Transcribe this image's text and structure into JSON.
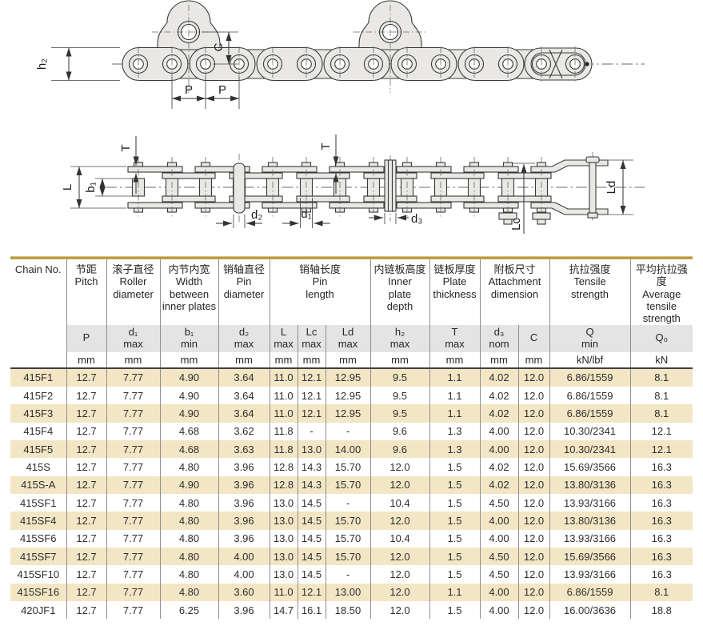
{
  "colors": {
    "accent_gold": "#bd9a35",
    "row_beige": "#f3e6c5",
    "symbol_gray": "#e4e4e4",
    "grid": "#8f8f8f",
    "drawing_fill": "#e9e8e5",
    "drawing_stroke": "#3a3a3a"
  },
  "drawings": {
    "side_view": {
      "labels": {
        "h2": "h₂",
        "c": "C",
        "p1": "P",
        "p2": "P"
      }
    },
    "plan_view": {
      "labels": {
        "t1": "T",
        "t2": "T",
        "l": "L",
        "b1": "b₁",
        "d2": "d₂",
        "d1": "d₁",
        "d3": "d₃",
        "lc": "Lc",
        "ld": "Ld"
      }
    }
  },
  "table": {
    "header": {
      "chain_no": "Chain No."
    },
    "columns": [
      {
        "zh": "节距",
        "en": "Pitch",
        "sym": "P",
        "unit": "mm"
      },
      {
        "zh": "滚子直径",
        "en": "Roller\ndiameter",
        "sym": "d₁\nmax",
        "unit": "mm"
      },
      {
        "zh": "内节内宽",
        "en": "Width\nbetween\ninner plates",
        "sym": "b₁\nmin",
        "unit": "mm"
      },
      {
        "zh": "销轴直径",
        "en": "Pin\ndiameter",
        "sym": "d₂\nmax",
        "unit": "mm"
      },
      {
        "zh": "销轴长度",
        "en": "Pin\nlength",
        "subs": [
          {
            "sym": "L\nmax",
            "unit": "mm"
          },
          {
            "sym": "Lc\nmax",
            "unit": "mm"
          },
          {
            "sym": "Ld\nmax",
            "unit": "mm"
          }
        ]
      },
      {
        "zh": "内链板高度",
        "en": "Inner\nplate\ndepth",
        "sym": "h₂\nmax",
        "unit": "mm"
      },
      {
        "zh": "链板厚度",
        "en": "Plate\nthickness",
        "sym": "T\nmax",
        "unit": "mm"
      },
      {
        "zh": "附板尺寸",
        "en": "Attachment\ndimension",
        "subs": [
          {
            "sym": "d₃\nnom",
            "unit": "mm"
          },
          {
            "sym": "C",
            "unit": "mm"
          }
        ]
      },
      {
        "zh": "抗拉强度",
        "en": "Tensile\nstrength",
        "sym": "Q\nmin",
        "unit": "kN/lbf"
      },
      {
        "zh": "平均抗拉强度",
        "en": "Average\ntensile\nstrength",
        "sym": "Q₀",
        "unit": "kN"
      }
    ],
    "rows": [
      {
        "no": "415F1",
        "p": "12.7",
        "d1": "7.77",
        "b1": "4.90",
        "d2": "3.64",
        "l": "11.0",
        "lc": "12.1",
        "ld": "12.95",
        "h2": "9.5",
        "t": "1.1",
        "d3": "4.02",
        "c": "12.0",
        "q": "6.86/1559",
        "q0": "8.1"
      },
      {
        "no": "415F2",
        "p": "12.7",
        "d1": "7.77",
        "b1": "4.90",
        "d2": "3.64",
        "l": "11.0",
        "lc": "12.1",
        "ld": "12.95",
        "h2": "9.5",
        "t": "1.1",
        "d3": "4.02",
        "c": "12.0",
        "q": "6.86/1559",
        "q0": "8.1"
      },
      {
        "no": "415F3",
        "p": "12.7",
        "d1": "7.77",
        "b1": "4.90",
        "d2": "3.64",
        "l": "11.0",
        "lc": "12.1",
        "ld": "12.95",
        "h2": "9.5",
        "t": "1.1",
        "d3": "4.02",
        "c": "12.0",
        "q": "6.86/1559",
        "q0": "8.1"
      },
      {
        "no": "415F4",
        "p": "12.7",
        "d1": "7.77",
        "b1": "4.68",
        "d2": "3.62",
        "l": "11.8",
        "lc": "-",
        "ld": "-",
        "h2": "9.6",
        "t": "1.3",
        "d3": "4.00",
        "c": "12.0",
        "q": "10.30/2341",
        "q0": "12.1"
      },
      {
        "no": "415F5",
        "p": "12.7",
        "d1": "7.77",
        "b1": "4.68",
        "d2": "3.63",
        "l": "11.8",
        "lc": "13.0",
        "ld": "14.00",
        "h2": "9.6",
        "t": "1.3",
        "d3": "4.00",
        "c": "12.0",
        "q": "10.30/2341",
        "q0": "12.1"
      },
      {
        "no": "415S",
        "p": "12.7",
        "d1": "7.77",
        "b1": "4.80",
        "d2": "3.96",
        "l": "12.8",
        "lc": "14.3",
        "ld": "15.70",
        "h2": "12.0",
        "t": "1.5",
        "d3": "4.02",
        "c": "12.0",
        "q": "15.69/3566",
        "q0": "16.3"
      },
      {
        "no": "415S-A",
        "p": "12.7",
        "d1": "7.77",
        "b1": "4.90",
        "d2": "3.96",
        "l": "12.8",
        "lc": "14.3",
        "ld": "15.70",
        "h2": "12.0",
        "t": "1.5",
        "d3": "4.02",
        "c": "12.0",
        "q": "13.80/3136",
        "q0": "16.3"
      },
      {
        "no": "415SF1",
        "p": "12.7",
        "d1": "7.77",
        "b1": "4.80",
        "d2": "3.96",
        "l": "13.0",
        "lc": "14.5",
        "ld": "-",
        "h2": "10.4",
        "t": "1.5",
        "d3": "4.50",
        "c": "12.0",
        "q": "13.93/3166",
        "q0": "16.3"
      },
      {
        "no": "415SF4",
        "p": "12.7",
        "d1": "7.77",
        "b1": "4.80",
        "d2": "3.96",
        "l": "13.0",
        "lc": "14.5",
        "ld": "15.70",
        "h2": "12.0",
        "t": "1.5",
        "d3": "4.00",
        "c": "12.0",
        "q": "13.80/3136",
        "q0": "16.3"
      },
      {
        "no": "415SF6",
        "p": "12.7",
        "d1": "7.77",
        "b1": "4.80",
        "d2": "3.96",
        "l": "13.0",
        "lc": "14.5",
        "ld": "15.70",
        "h2": "10.4",
        "t": "1.5",
        "d3": "4.00",
        "c": "12.0",
        "q": "13.93/3166",
        "q0": "16.3"
      },
      {
        "no": "415SF7",
        "p": "12.7",
        "d1": "7.77",
        "b1": "4.80",
        "d2": "4.00",
        "l": "13.0",
        "lc": "14.5",
        "ld": "15.70",
        "h2": "12.0",
        "t": "1.5",
        "d3": "4.50",
        "c": "12.0",
        "q": "15.69/3566",
        "q0": "16.3"
      },
      {
        "no": "415SF10",
        "p": "12.7",
        "d1": "7.77",
        "b1": "4.80",
        "d2": "4.00",
        "l": "13.0",
        "lc": "14.5",
        "ld": "-",
        "h2": "12.0",
        "t": "1.5",
        "d3": "4.50",
        "c": "12.0",
        "q": "13.93/3166",
        "q0": "16.3"
      },
      {
        "no": "415SF16",
        "p": "12.7",
        "d1": "7.77",
        "b1": "4.80",
        "d2": "3.60",
        "l": "11.0",
        "lc": "12.1",
        "ld": "13.00",
        "h2": "12.0",
        "t": "1.1",
        "d3": "4.00",
        "c": "12.0",
        "q": "6.86/1559",
        "q0": "8.1"
      },
      {
        "no": "420JF1",
        "p": "12.7",
        "d1": "7.77",
        "b1": "6.25",
        "d2": "3.96",
        "l": "14.7",
        "lc": "16.1",
        "ld": "18.50",
        "h2": "12.0",
        "t": "1.5",
        "d3": "4.00",
        "c": "12.0",
        "q": "16.00/3636",
        "q0": "18.8"
      }
    ]
  }
}
